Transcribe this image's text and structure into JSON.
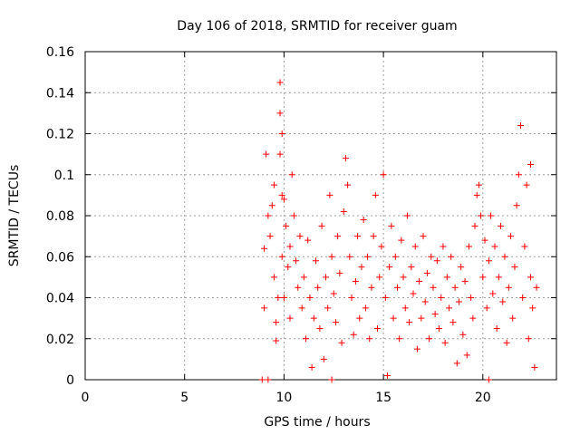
{
  "chart_data": {
    "type": "scatter",
    "title": "Day 106 of 2018, SRMTID for receiver guam",
    "xlabel": "GPS time / hours",
    "ylabel": "SRMTID / TECUs",
    "xlim": [
      0,
      23.7
    ],
    "ylim": [
      0,
      0.16
    ],
    "x_ticks": [
      "0",
      "5",
      "10",
      "15",
      "20"
    ],
    "y_ticks": [
      "0",
      "0.02",
      "0.04",
      "0.06",
      "0.08",
      "0.1",
      "0.12",
      "0.14",
      "0.16"
    ],
    "grid": true,
    "marker": "+",
    "color": "#ff0000",
    "series": [
      {
        "name": "SRMTID",
        "points": [
          [
            8.9,
            0.0
          ],
          [
            9.2,
            0.0
          ],
          [
            12.4,
            0.0
          ],
          [
            20.3,
            0.0
          ],
          [
            9.0,
            0.035
          ],
          [
            9.0,
            0.064
          ],
          [
            9.1,
            0.11
          ],
          [
            9.2,
            0.08
          ],
          [
            9.3,
            0.07
          ],
          [
            9.4,
            0.085
          ],
          [
            9.5,
            0.095
          ],
          [
            9.5,
            0.05
          ],
          [
            9.6,
            0.028
          ],
          [
            9.6,
            0.019
          ],
          [
            9.7,
            0.04
          ],
          [
            9.8,
            0.145
          ],
          [
            9.8,
            0.13
          ],
          [
            9.8,
            0.11
          ],
          [
            9.9,
            0.12
          ],
          [
            9.9,
            0.09
          ],
          [
            9.9,
            0.06
          ],
          [
            10.0,
            0.04
          ],
          [
            10.0,
            0.088
          ],
          [
            10.1,
            0.075
          ],
          [
            10.2,
            0.055
          ],
          [
            10.3,
            0.03
          ],
          [
            10.3,
            0.065
          ],
          [
            10.4,
            0.1
          ],
          [
            10.5,
            0.08
          ],
          [
            10.6,
            0.058
          ],
          [
            10.7,
            0.045
          ],
          [
            10.8,
            0.07
          ],
          [
            10.9,
            0.035
          ],
          [
            11.0,
            0.05
          ],
          [
            11.1,
            0.02
          ],
          [
            11.2,
            0.068
          ],
          [
            11.3,
            0.04
          ],
          [
            11.4,
            0.006
          ],
          [
            11.5,
            0.03
          ],
          [
            11.6,
            0.058
          ],
          [
            11.7,
            0.045
          ],
          [
            11.8,
            0.025
          ],
          [
            11.9,
            0.075
          ],
          [
            12.0,
            0.01
          ],
          [
            12.1,
            0.05
          ],
          [
            12.2,
            0.035
          ],
          [
            12.3,
            0.09
          ],
          [
            12.4,
            0.06
          ],
          [
            12.5,
            0.042
          ],
          [
            12.6,
            0.028
          ],
          [
            12.7,
            0.07
          ],
          [
            12.8,
            0.052
          ],
          [
            12.9,
            0.018
          ],
          [
            13.0,
            0.082
          ],
          [
            13.1,
            0.108
          ],
          [
            13.2,
            0.095
          ],
          [
            13.3,
            0.06
          ],
          [
            13.4,
            0.04
          ],
          [
            13.5,
            0.022
          ],
          [
            13.6,
            0.048
          ],
          [
            13.7,
            0.07
          ],
          [
            13.8,
            0.03
          ],
          [
            13.9,
            0.055
          ],
          [
            14.0,
            0.078
          ],
          [
            14.1,
            0.035
          ],
          [
            14.2,
            0.06
          ],
          [
            14.3,
            0.02
          ],
          [
            14.4,
            0.045
          ],
          [
            14.5,
            0.07
          ],
          [
            14.6,
            0.09
          ],
          [
            14.7,
            0.025
          ],
          [
            14.8,
            0.05
          ],
          [
            14.9,
            0.065
          ],
          [
            15.0,
            0.1
          ],
          [
            15.1,
            0.04
          ],
          [
            15.2,
            0.002
          ],
          [
            15.3,
            0.055
          ],
          [
            15.4,
            0.075
          ],
          [
            15.5,
            0.03
          ],
          [
            15.6,
            0.06
          ],
          [
            15.7,
            0.045
          ],
          [
            15.8,
            0.02
          ],
          [
            15.9,
            0.068
          ],
          [
            16.0,
            0.05
          ],
          [
            16.1,
            0.035
          ],
          [
            16.2,
            0.08
          ],
          [
            16.3,
            0.028
          ],
          [
            16.4,
            0.055
          ],
          [
            16.5,
            0.042
          ],
          [
            16.6,
            0.065
          ],
          [
            16.7,
            0.015
          ],
          [
            16.8,
            0.048
          ],
          [
            16.9,
            0.03
          ],
          [
            17.0,
            0.07
          ],
          [
            17.1,
            0.038
          ],
          [
            17.2,
            0.052
          ],
          [
            17.3,
            0.02
          ],
          [
            17.4,
            0.06
          ],
          [
            17.5,
            0.045
          ],
          [
            17.6,
            0.032
          ],
          [
            17.7,
            0.058
          ],
          [
            17.8,
            0.025
          ],
          [
            17.9,
            0.04
          ],
          [
            18.0,
            0.065
          ],
          [
            18.1,
            0.018
          ],
          [
            18.2,
            0.05
          ],
          [
            18.3,
            0.035
          ],
          [
            18.4,
            0.06
          ],
          [
            18.5,
            0.028
          ],
          [
            18.6,
            0.045
          ],
          [
            18.7,
            0.008
          ],
          [
            18.8,
            0.038
          ],
          [
            18.9,
            0.055
          ],
          [
            19.0,
            0.022
          ],
          [
            19.1,
            0.048
          ],
          [
            19.2,
            0.012
          ],
          [
            19.3,
            0.065
          ],
          [
            19.4,
            0.04
          ],
          [
            19.5,
            0.03
          ],
          [
            19.6,
            0.075
          ],
          [
            19.7,
            0.09
          ],
          [
            19.8,
            0.095
          ],
          [
            19.9,
            0.08
          ],
          [
            20.0,
            0.05
          ],
          [
            20.1,
            0.068
          ],
          [
            20.2,
            0.035
          ],
          [
            20.3,
            0.058
          ],
          [
            20.4,
            0.08
          ],
          [
            20.5,
            0.042
          ],
          [
            20.6,
            0.065
          ],
          [
            20.7,
            0.025
          ],
          [
            20.8,
            0.05
          ],
          [
            20.9,
            0.075
          ],
          [
            21.0,
            0.038
          ],
          [
            21.1,
            0.06
          ],
          [
            21.2,
            0.018
          ],
          [
            21.3,
            0.045
          ],
          [
            21.4,
            0.07
          ],
          [
            21.5,
            0.03
          ],
          [
            21.6,
            0.055
          ],
          [
            21.7,
            0.085
          ],
          [
            21.8,
            0.1
          ],
          [
            21.9,
            0.124
          ],
          [
            22.0,
            0.04
          ],
          [
            22.1,
            0.065
          ],
          [
            22.2,
            0.095
          ],
          [
            22.3,
            0.02
          ],
          [
            22.4,
            0.05
          ],
          [
            22.5,
            0.035
          ],
          [
            22.6,
            0.006
          ],
          [
            22.7,
            0.045
          ],
          [
            22.4,
            0.105
          ]
        ]
      }
    ]
  }
}
